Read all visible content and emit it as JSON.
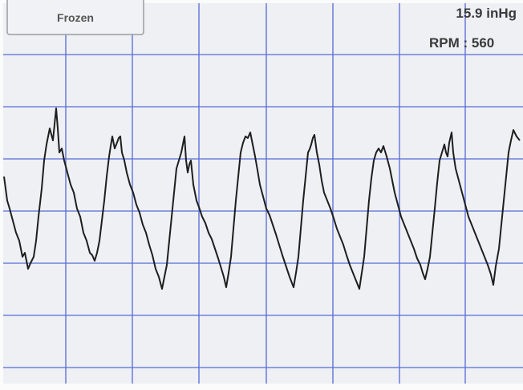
{
  "button": {
    "label": "Frozen"
  },
  "readout": {
    "pressure": "15.9 inHg",
    "rpm": "RPM : 560"
  }
}
